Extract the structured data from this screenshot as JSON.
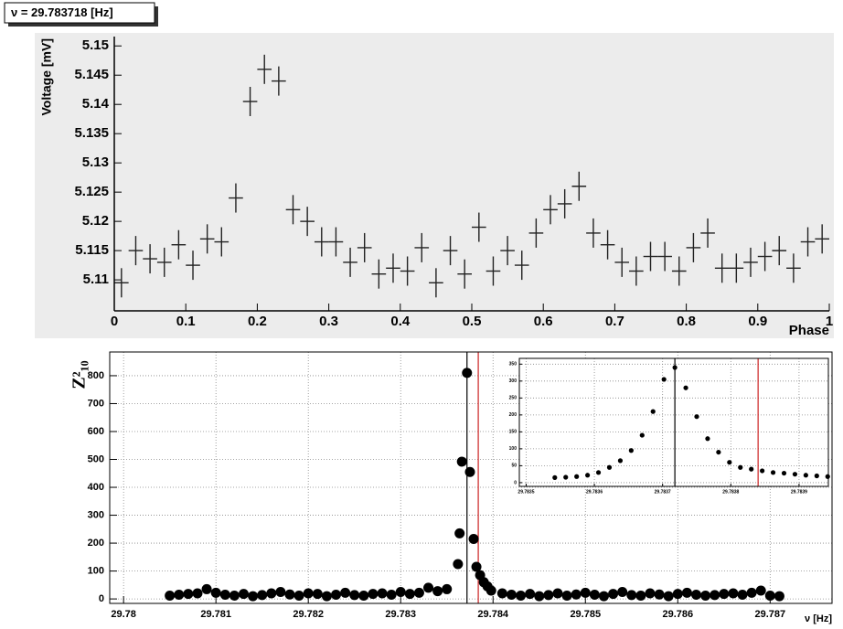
{
  "label": "ν = 29.783718 [Hz]",
  "chart_data": [
    {
      "type": "errorbar",
      "x_label": "Phase",
      "y_label": "Voltage [mV]",
      "color": "#222222",
      "x": [
        0.01,
        0.03,
        0.05,
        0.07,
        0.09,
        0.11,
        0.13,
        0.15,
        0.17,
        0.19,
        0.21,
        0.23,
        0.25,
        0.27,
        0.29,
        0.31,
        0.33,
        0.35,
        0.37,
        0.39,
        0.41,
        0.43,
        0.45,
        0.47,
        0.49,
        0.51,
        0.53,
        0.55,
        0.57,
        0.59,
        0.61,
        0.63,
        0.65,
        0.67,
        0.69,
        0.71,
        0.73,
        0.75,
        0.77,
        0.79,
        0.81,
        0.83,
        0.85,
        0.87,
        0.89,
        0.91,
        0.93,
        0.95,
        0.97,
        0.99
      ],
      "values": [
        5.1095,
        5.115,
        5.1136,
        5.113,
        5.116,
        5.1125,
        5.117,
        5.1165,
        5.124,
        5.1405,
        5.146,
        5.144,
        5.122,
        5.12,
        5.1165,
        5.1165,
        5.113,
        5.1155,
        5.111,
        5.112,
        5.1115,
        5.1155,
        5.1095,
        5.115,
        5.111,
        5.119,
        5.1115,
        5.115,
        5.1125,
        5.118,
        5.122,
        5.123,
        5.126,
        5.118,
        5.116,
        5.113,
        5.1115,
        5.114,
        5.114,
        5.1115,
        5.1155,
        5.118,
        5.112,
        5.112,
        5.113,
        5.114,
        5.115,
        5.112,
        5.1165,
        5.117
      ],
      "xerr": 0.01,
      "yerr": 0.0025,
      "xlim": [
        0,
        1
      ],
      "ylim": [
        5.1047,
        5.1516
      ],
      "xticks": [
        0,
        0.1,
        0.2,
        0.3,
        0.4,
        0.5,
        0.6,
        0.7,
        0.8,
        0.9,
        1
      ],
      "yticks": [
        5.11,
        5.115,
        5.12,
        5.125,
        5.13,
        5.135,
        5.14,
        5.145,
        5.15
      ],
      "grid": false
    },
    {
      "type": "scatter",
      "x_label": "ν [Hz]",
      "y_label": "Z²₁₀",
      "color": "#000000",
      "x": [
        29.7805,
        29.7806,
        29.7807,
        29.7808,
        29.7809,
        29.781,
        29.7811,
        29.7812,
        29.7813,
        29.7814,
        29.7815,
        29.7816,
        29.7817,
        29.7818,
        29.7819,
        29.782,
        29.7821,
        29.7822,
        29.7823,
        29.7824,
        29.7825,
        29.7826,
        29.7827,
        29.7828,
        29.7829,
        29.783,
        29.7831,
        29.7832,
        29.7833,
        29.7834,
        29.7835,
        29.78362,
        29.783638,
        29.783663,
        29.783718,
        29.78375,
        29.78379,
        29.78382,
        29.78386,
        29.7839,
        29.78394,
        29.78398,
        29.7841,
        29.7842,
        29.7843,
        29.7844,
        29.7845,
        29.7846,
        29.7847,
        29.7848,
        29.7849,
        29.785,
        29.7851,
        29.7852,
        29.7853,
        29.7854,
        29.7855,
        29.7856,
        29.7857,
        29.7858,
        29.7859,
        29.786,
        29.7861,
        29.7862,
        29.7863,
        29.7864,
        29.7865,
        29.7866,
        29.7867,
        29.7868,
        29.7869,
        29.787,
        29.7871
      ],
      "values": [
        12,
        15,
        18,
        20,
        35,
        22,
        15,
        12,
        18,
        10,
        14,
        20,
        25,
        16,
        12,
        20,
        18,
        10,
        15,
        22,
        14,
        12,
        18,
        20,
        15,
        25,
        18,
        22,
        40,
        28,
        35,
        125,
        235,
        492,
        810,
        455,
        215,
        115,
        85,
        60,
        45,
        30,
        20,
        15,
        12,
        18,
        10,
        14,
        20,
        12,
        16,
        22,
        15,
        10,
        18,
        25,
        14,
        12,
        20,
        16,
        10,
        18,
        22,
        15,
        12,
        14,
        18,
        20,
        15,
        22,
        30,
        12,
        10
      ],
      "xlim": [
        29.77985,
        29.78767
      ],
      "ylim": [
        -16,
        885
      ],
      "xticks": [
        29.78,
        29.781,
        29.782,
        29.783,
        29.784,
        29.785,
        29.786,
        29.787
      ],
      "yticks": [
        0,
        100,
        200,
        300,
        400,
        500,
        600,
        700,
        800
      ],
      "grid": true,
      "vlines": [
        {
          "x": 29.783718,
          "color": "#000000"
        },
        {
          "x": 29.78384,
          "color": "#cc2222"
        }
      ]
    },
    {
      "type": "scatter",
      "color": "#000000",
      "x": [
        29.783542,
        29.783558,
        29.783574,
        29.78359,
        29.783606,
        29.783622,
        29.783638,
        29.783654,
        29.78367,
        29.783686,
        29.783702,
        29.783718,
        29.783734,
        29.78375,
        29.783766,
        29.783782,
        29.783798,
        29.783814,
        29.78383,
        29.783846,
        29.783862,
        29.783878,
        29.783894,
        29.78391,
        29.783926,
        29.783942
      ],
      "values": [
        15,
        16,
        18,
        22,
        30,
        45,
        65,
        95,
        140,
        210,
        305,
        340,
        280,
        195,
        130,
        90,
        60,
        45,
        40,
        35,
        30,
        28,
        25,
        22,
        20,
        18
      ],
      "xlim": [
        29.78349,
        29.783943
      ],
      "ylim": [
        -11,
        367
      ],
      "xticks": [
        29.7835,
        29.7836,
        29.7837,
        29.7838,
        29.7839
      ],
      "yticks": [
        0,
        50,
        100,
        150,
        200,
        250,
        300,
        350
      ],
      "grid": true,
      "vlines": [
        {
          "x": 29.783718,
          "color": "#000000"
        },
        {
          "x": 29.78384,
          "color": "#cc2222"
        }
      ]
    }
  ]
}
